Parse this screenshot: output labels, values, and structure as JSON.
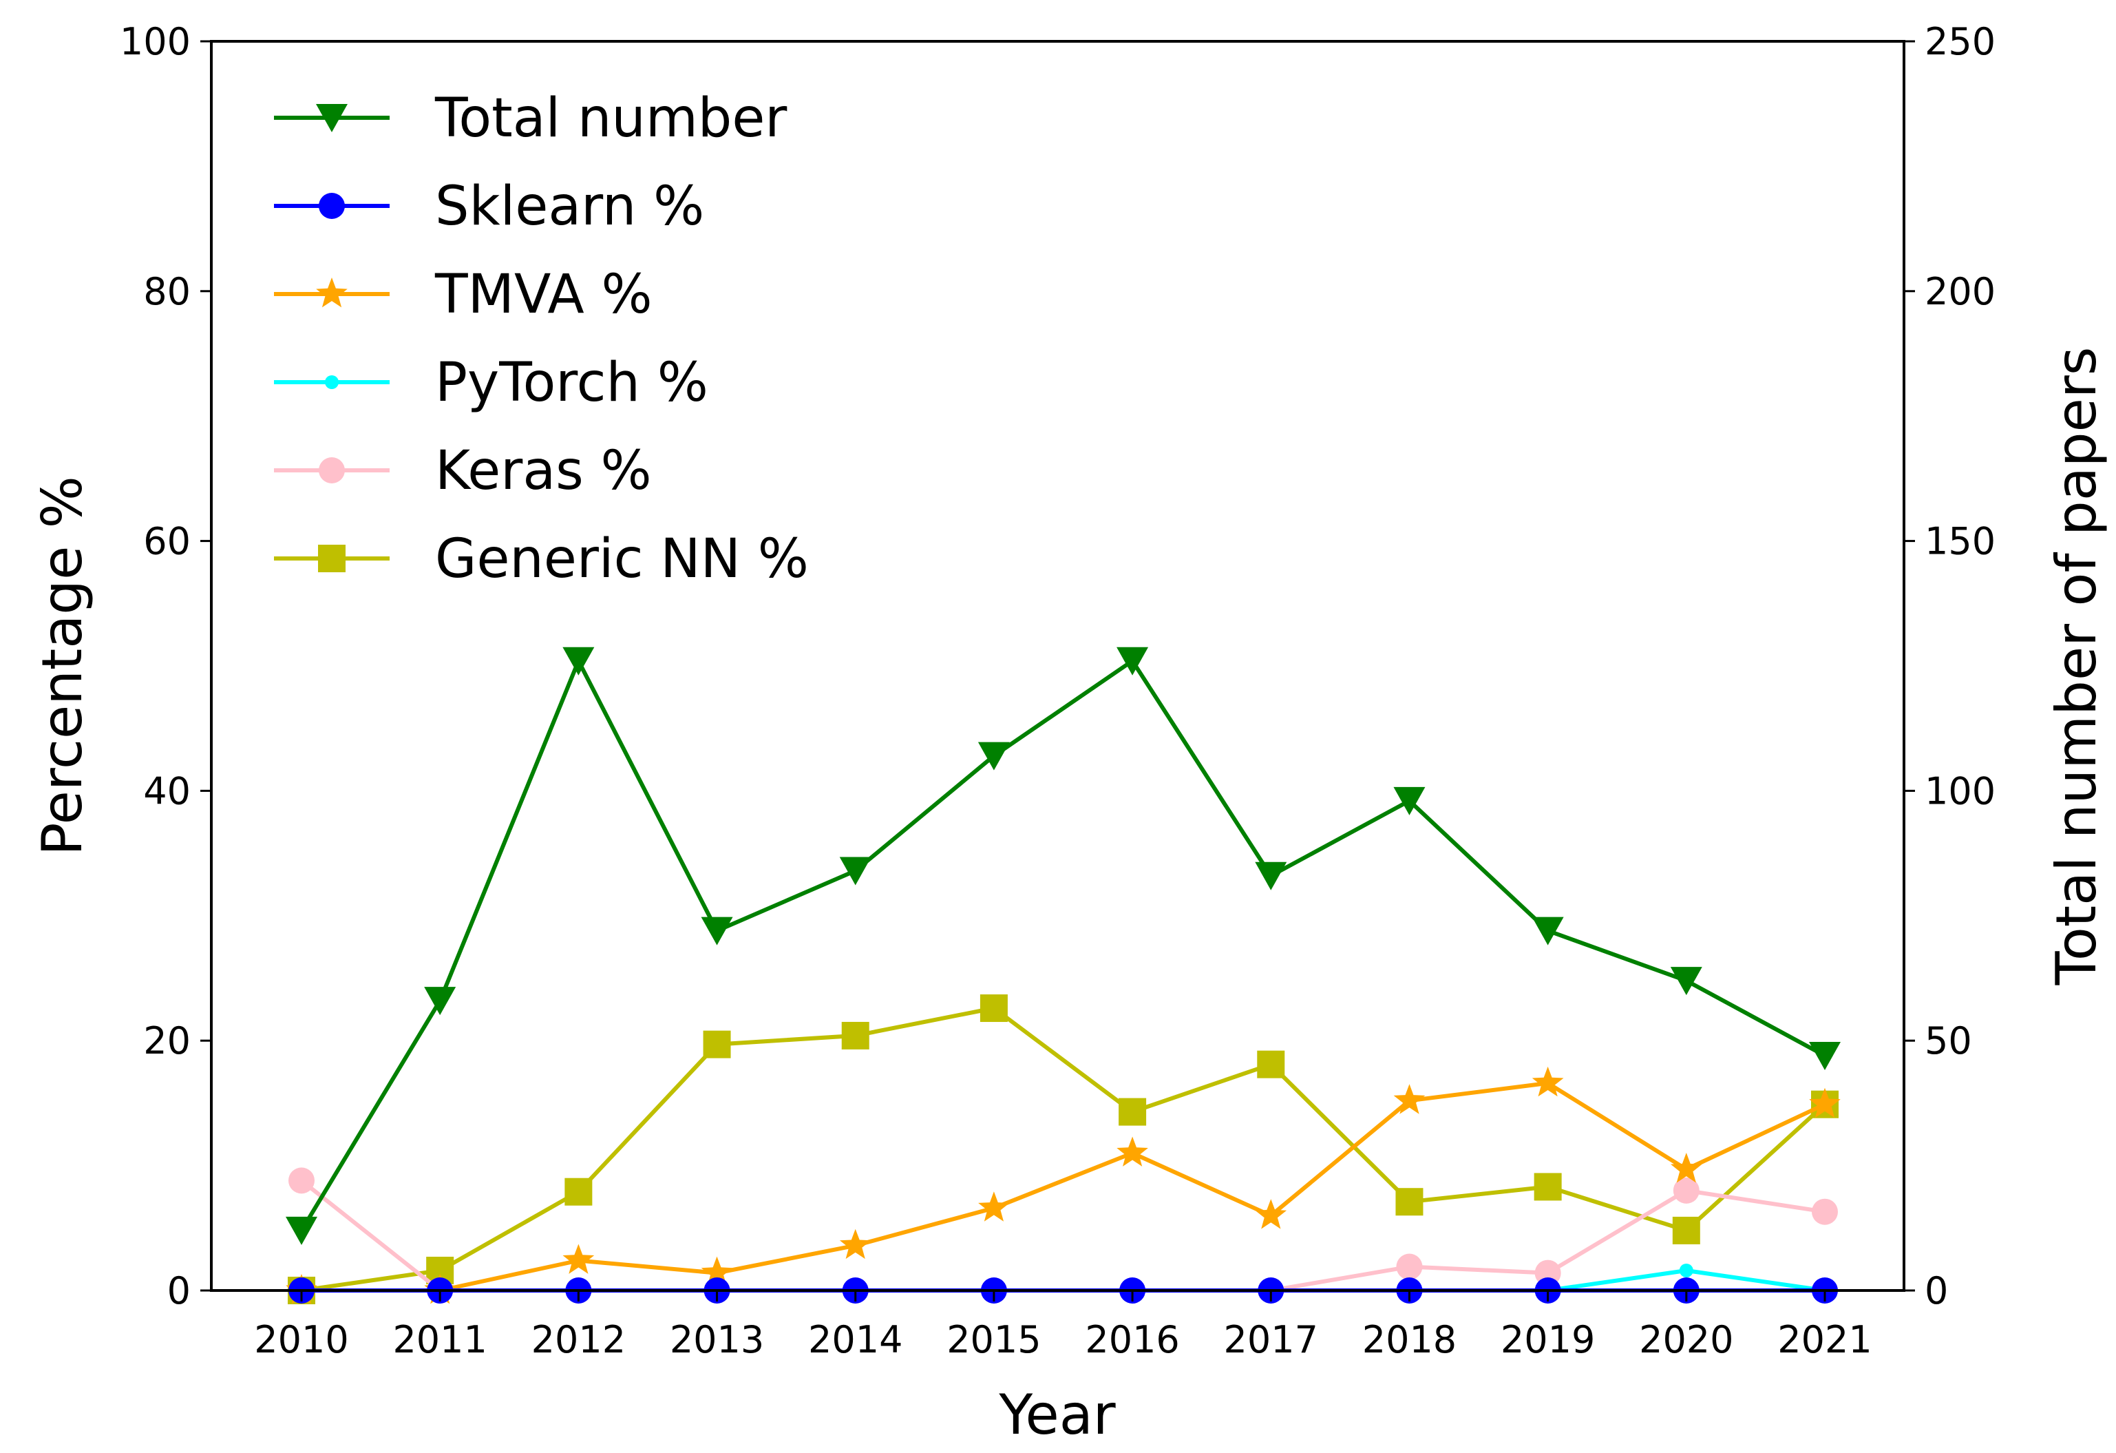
{
  "chart_data": {
    "type": "line",
    "title": "",
    "xlabel": "Year",
    "ylabel_left": "Percentage %",
    "ylabel_right": "Total number of papers",
    "x": [
      2010,
      2011,
      2012,
      2013,
      2014,
      2015,
      2016,
      2017,
      2018,
      2019,
      2020,
      2021
    ],
    "x_ticks": [
      "2010",
      "2011",
      "2012",
      "2013",
      "2014",
      "2015",
      "2016",
      "2017",
      "2018",
      "2019",
      "2020",
      "2021"
    ],
    "ylim_left": [
      0,
      100
    ],
    "yticks_left": [
      "0",
      "20",
      "40",
      "60",
      "80",
      "100"
    ],
    "ylim_right": [
      0,
      250
    ],
    "yticks_right": [
      "0",
      "50",
      "100",
      "150",
      "200",
      "250"
    ],
    "grid": false,
    "legend_position": "upper-left",
    "series": [
      {
        "name": "Total number",
        "axis": "right",
        "color": "#008000",
        "marker": "triangle-down",
        "values": [
          12,
          58,
          126,
          72,
          84,
          107,
          126,
          83,
          98,
          72,
          62,
          47
        ]
      },
      {
        "name": "Sklearn %",
        "axis": "left",
        "color": "#0000ff",
        "marker": "circle",
        "values": [
          0,
          0,
          0,
          0,
          0,
          0,
          0,
          0,
          0,
          0,
          0,
          0
        ]
      },
      {
        "name": "TMVA %",
        "axis": "left",
        "color": "#ffa500",
        "marker": "star",
        "values": [
          0,
          0,
          2.4,
          1.4,
          3.6,
          6.6,
          11.0,
          6.0,
          15.2,
          16.6,
          9.7,
          14.9
        ]
      },
      {
        "name": "PyTorch %",
        "axis": "left",
        "color": "#00ffff",
        "marker": "point",
        "values": [
          0,
          0,
          0,
          0,
          0,
          0,
          0,
          0,
          0,
          0,
          1.6,
          0
        ]
      },
      {
        "name": "Keras %",
        "axis": "left",
        "color": "#ffc0cb",
        "marker": "circle",
        "values": [
          8.8,
          0,
          0,
          0,
          0,
          0,
          0,
          0,
          1.9,
          1.4,
          8.0,
          6.3
        ]
      },
      {
        "name": "Generic NN %",
        "axis": "left",
        "color": "#bfbf00",
        "marker": "square",
        "values": [
          0,
          1.6,
          7.9,
          19.7,
          20.4,
          22.6,
          14.3,
          18.1,
          7.1,
          8.3,
          4.8,
          14.9
        ]
      }
    ]
  }
}
